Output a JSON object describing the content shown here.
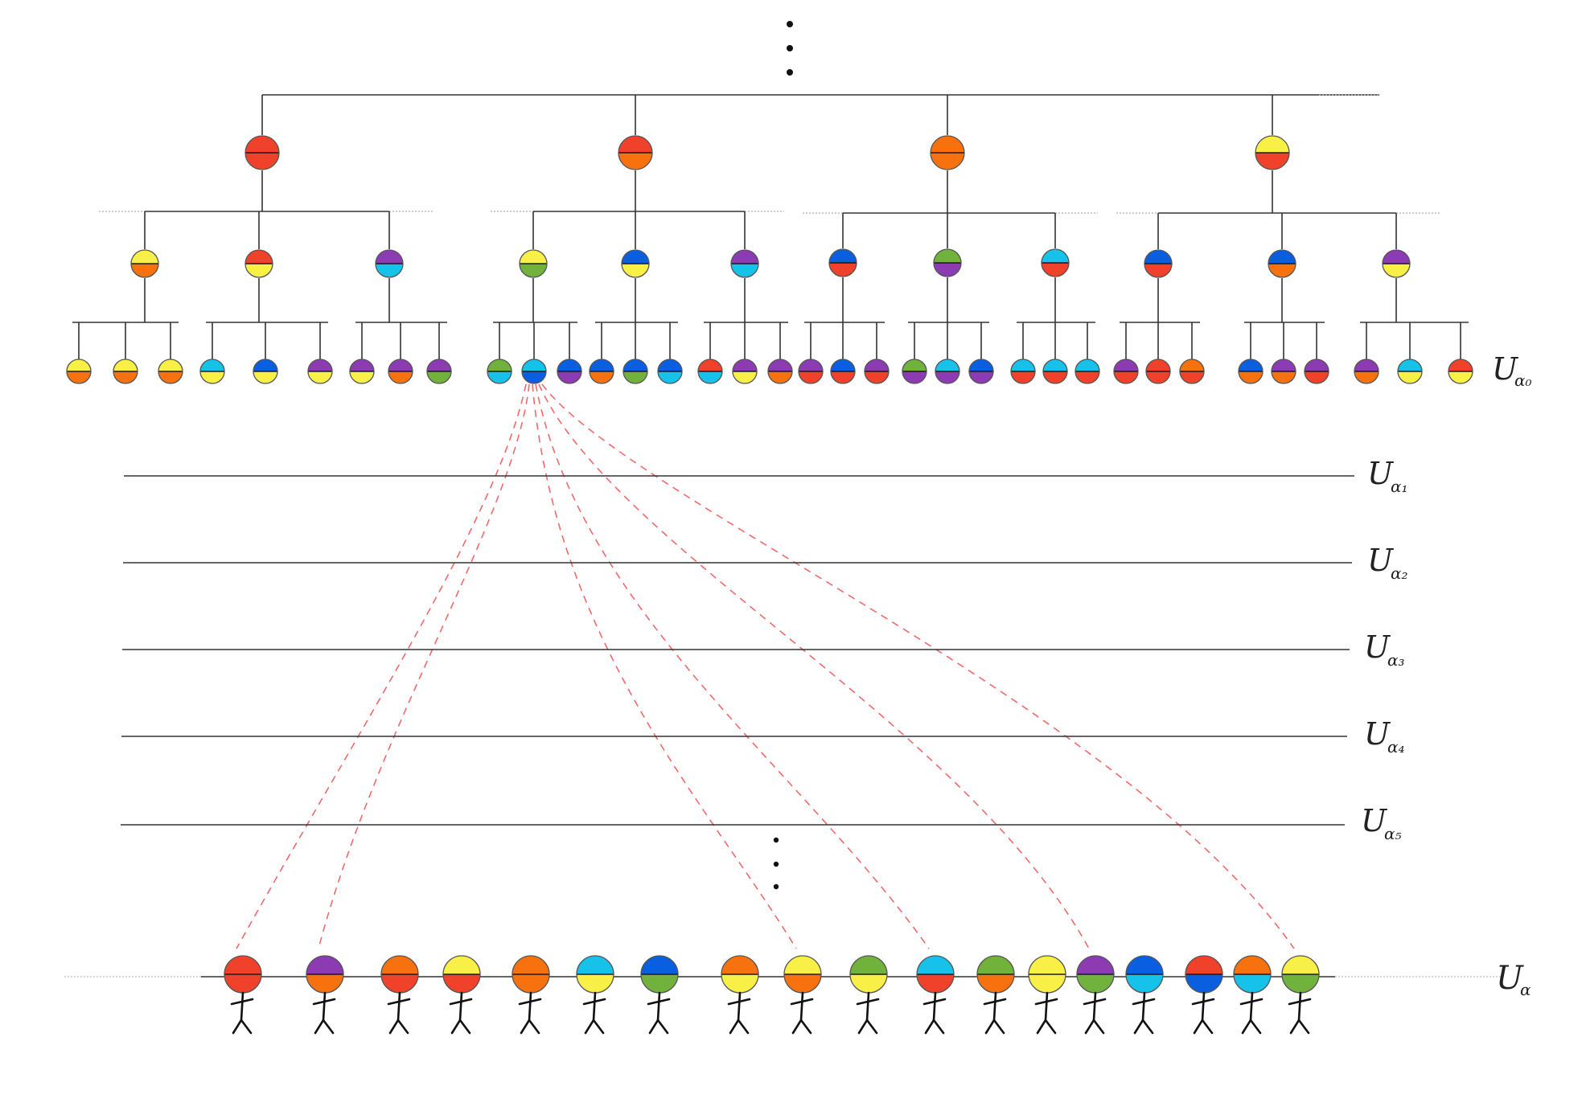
{
  "colors": {
    "R": "#f0412a",
    "O": "#f7720f",
    "Y": "#f9f047",
    "P": "#8c3bb2",
    "C": "#16c2ea",
    "B": "#0a5fe0",
    "G": "#71b23c",
    "line": "#333333",
    "dashed": "#f06a6a",
    "dotted": "#9a9a9a"
  },
  "levels": {
    "top": {
      "main": "U",
      "sub": "α₀"
    },
    "mid": [
      {
        "main": "U",
        "sub": "α₁"
      },
      {
        "main": "U",
        "sub": "α₂"
      },
      {
        "main": "U",
        "sub": "α₃"
      },
      {
        "main": "U",
        "sub": "α₄"
      },
      {
        "main": "U",
        "sub": "α₅"
      }
    ],
    "bottom": {
      "main": "U",
      "sub": "α"
    }
  },
  "tree": [
    {
      "color": [
        "R",
        "R"
      ],
      "children": [
        {
          "color": [
            "Y",
            "O"
          ],
          "children": [
            [
              "Y",
              "O"
            ],
            [
              "Y",
              "O"
            ],
            [
              "Y",
              "O"
            ]
          ]
        },
        {
          "color": [
            "R",
            "Y"
          ],
          "children": [
            [
              "C",
              "Y"
            ],
            [
              "B",
              "Y"
            ],
            [
              "P",
              "Y"
            ]
          ]
        },
        {
          "color": [
            "P",
            "C"
          ],
          "children": [
            [
              "P",
              "Y"
            ],
            [
              "P",
              "O"
            ],
            [
              "P",
              "G"
            ]
          ]
        }
      ]
    },
    {
      "color": [
        "R",
        "O"
      ],
      "children": [
        {
          "color": [
            "Y",
            "G"
          ],
          "children": [
            [
              "G",
              "C"
            ],
            [
              "C",
              "B"
            ],
            [
              "B",
              "P"
            ]
          ]
        },
        {
          "color": [
            "B",
            "Y"
          ],
          "children": [
            [
              "B",
              "O"
            ],
            [
              "B",
              "G"
            ],
            [
              "B",
              "C"
            ]
          ]
        },
        {
          "color": [
            "P",
            "C"
          ],
          "children": [
            [
              "R",
              "C"
            ],
            [
              "P",
              "Y"
            ],
            [
              "P",
              "O"
            ]
          ]
        }
      ]
    },
    {
      "color": [
        "O",
        "O"
      ],
      "children": [
        {
          "color": [
            "B",
            "R"
          ],
          "children": [
            [
              "P",
              "R"
            ],
            [
              "B",
              "R"
            ],
            [
              "P",
              "R"
            ]
          ]
        },
        {
          "color": [
            "G",
            "P"
          ],
          "children": [
            [
              "G",
              "P"
            ],
            [
              "C",
              "P"
            ],
            [
              "B",
              "P"
            ]
          ]
        },
        {
          "color": [
            "C",
            "R"
          ],
          "children": [
            [
              "C",
              "R"
            ],
            [
              "C",
              "R"
            ],
            [
              "C",
              "R"
            ]
          ]
        }
      ]
    },
    {
      "color": [
        "Y",
        "R"
      ],
      "children": [
        {
          "color": [
            "B",
            "R"
          ],
          "children": [
            [
              "P",
              "R"
            ],
            [
              "R",
              "R"
            ],
            [
              "O",
              "R"
            ]
          ]
        },
        {
          "color": [
            "B",
            "O"
          ],
          "children": [
            [
              "B",
              "O"
            ],
            [
              "P",
              "O"
            ],
            [
              "P",
              "R"
            ]
          ]
        },
        {
          "color": [
            "P",
            "Y"
          ],
          "children": [
            [
              "P",
              "O"
            ],
            [
              "C",
              "Y"
            ],
            [
              "R",
              "Y"
            ]
          ]
        }
      ]
    }
  ],
  "people": [
    [
      "R",
      "R"
    ],
    [
      "P",
      "O"
    ],
    [
      "O",
      "R"
    ],
    [
      "Y",
      "R"
    ],
    [
      "O",
      "O"
    ],
    [
      "C",
      "Y"
    ],
    [
      "B",
      "G"
    ],
    [
      "O",
      "Y"
    ],
    [
      "Y",
      "O"
    ],
    [
      "G",
      "Y"
    ],
    [
      "C",
      "R"
    ],
    [
      "G",
      "O"
    ],
    [
      "Y",
      "Y"
    ],
    [
      "P",
      "G"
    ],
    [
      "B",
      "C"
    ],
    [
      "R",
      "B"
    ],
    [
      "O",
      "C"
    ],
    [
      "Y",
      "G"
    ]
  ],
  "connections_from_leaf": 1,
  "connections_to_people": [
    0,
    1,
    8,
    10,
    13,
    17
  ]
}
